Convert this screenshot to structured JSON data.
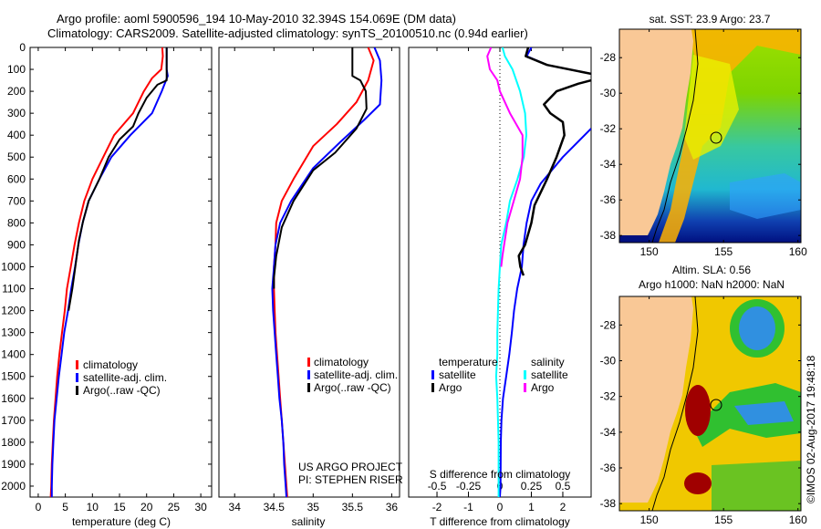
{
  "header": {
    "title_line1": "Argo profile: aoml 5900596_194 10-May-2010 32.394S 154.069E (DM data)",
    "title_line2": "Climatology: CARS2009. Satellite-adjusted climatology: synTS_20100510.nc (0.94d earlier)"
  },
  "colors": {
    "climatology": "#ff0000",
    "satellite": "#0000ff",
    "argo": "#000000",
    "salinity_satellite": "#00ffff",
    "salinity_argo": "#ff00ff",
    "land": "#f9c896"
  },
  "chart_data": [
    {
      "type": "line",
      "id": "temperature-profile",
      "xlabel": "temperature (deg C)",
      "ylabel": "",
      "xlim": [
        -1.5,
        32
      ],
      "ylim": [
        2050,
        0
      ],
      "xticks": [
        0,
        5,
        10,
        15,
        20,
        25,
        30
      ],
      "yticks": [
        0,
        100,
        200,
        300,
        400,
        500,
        600,
        700,
        800,
        900,
        1000,
        1100,
        1200,
        1300,
        1400,
        1500,
        1600,
        1700,
        1800,
        1900,
        2000
      ],
      "legend": {
        "position": "center-right",
        "entries": [
          "climatology",
          "satellite-adj. clim.",
          "Argo(..raw -QC)"
        ]
      },
      "series": [
        {
          "name": "climatology",
          "color_key": "climatology",
          "points": [
            [
              22.9,
              0
            ],
            [
              23.0,
              40
            ],
            [
              22.7,
              100
            ],
            [
              21.0,
              140
            ],
            [
              19.5,
              200
            ],
            [
              17.5,
              300
            ],
            [
              14.0,
              400
            ],
            [
              12.0,
              500
            ],
            [
              10.0,
              600
            ],
            [
              8.5,
              700
            ],
            [
              7.5,
              800
            ],
            [
              6.7,
              900
            ],
            [
              6.0,
              1000
            ],
            [
              5.3,
              1100
            ],
            [
              4.9,
              1200
            ],
            [
              4.4,
              1300
            ],
            [
              3.9,
              1400
            ],
            [
              3.5,
              1500
            ],
            [
              3.2,
              1600
            ],
            [
              2.9,
              1700
            ],
            [
              2.7,
              1800
            ],
            [
              2.5,
              1900
            ],
            [
              2.4,
              2000
            ],
            [
              2.3,
              2050
            ]
          ]
        },
        {
          "name": "satellite-adj. clim.",
          "color_key": "satellite",
          "points": [
            [
              23.7,
              0
            ],
            [
              23.7,
              100
            ],
            [
              23.9,
              130
            ],
            [
              22.8,
              200
            ],
            [
              21.0,
              300
            ],
            [
              17.0,
              400
            ],
            [
              13.5,
              500
            ],
            [
              11.3,
              600
            ],
            [
              9.3,
              700
            ],
            [
              8.2,
              800
            ],
            [
              7.4,
              900
            ],
            [
              6.8,
              1000
            ],
            [
              6.1,
              1100
            ],
            [
              5.5,
              1200
            ],
            [
              4.8,
              1300
            ],
            [
              4.3,
              1400
            ],
            [
              3.8,
              1500
            ],
            [
              3.4,
              1600
            ],
            [
              3.0,
              1700
            ],
            [
              2.8,
              1800
            ],
            [
              2.6,
              1900
            ],
            [
              2.5,
              2000
            ],
            [
              2.5,
              2050
            ]
          ]
        },
        {
          "name": "Argo(..raw -QC)",
          "color_key": "argo",
          "points": [
            [
              23.7,
              0
            ],
            [
              23.7,
              150
            ],
            [
              22.0,
              170
            ],
            [
              20.0,
              230
            ],
            [
              18.5,
              300
            ],
            [
              17.5,
              360
            ],
            [
              15.0,
              420
            ],
            [
              13.0,
              500
            ],
            [
              11.3,
              600
            ],
            [
              9.3,
              700
            ],
            [
              8.3,
              790
            ],
            [
              7.5,
              880
            ],
            [
              6.9,
              990
            ],
            [
              6.3,
              1100
            ],
            [
              5.6,
              1200
            ]
          ]
        }
      ]
    },
    {
      "type": "line",
      "id": "salinity-profile",
      "xlabel": "salinity",
      "xlim": [
        33.8,
        36.1
      ],
      "ylim": [
        2050,
        0
      ],
      "xticks": [
        34,
        34.5,
        35,
        35.5,
        36
      ],
      "xticklabels": [
        "34",
        "34.5",
        "35",
        "35.5",
        "36"
      ],
      "legend": {
        "position": "center-right",
        "entries": [
          "climatology",
          "satellite-adj. clim.",
          "Argo(..raw -QC)"
        ]
      },
      "annotations": [
        "US ARGO PROJECT",
        "PI: STEPHEN RISER"
      ],
      "series": [
        {
          "name": "climatology",
          "color_key": "climatology",
          "points": [
            [
              35.7,
              0
            ],
            [
              35.77,
              60
            ],
            [
              35.7,
              150
            ],
            [
              35.55,
              250
            ],
            [
              35.3,
              350
            ],
            [
              35.0,
              450
            ],
            [
              34.75,
              600
            ],
            [
              34.6,
              700
            ],
            [
              34.53,
              800
            ],
            [
              34.52,
              900
            ],
            [
              34.5,
              1000
            ],
            [
              34.5,
              1100
            ],
            [
              34.51,
              1200
            ],
            [
              34.52,
              1300
            ],
            [
              34.54,
              1400
            ],
            [
              34.56,
              1500
            ],
            [
              34.58,
              1600
            ],
            [
              34.6,
              1700
            ],
            [
              34.62,
              1800
            ],
            [
              34.64,
              1900
            ],
            [
              34.66,
              2000
            ],
            [
              34.67,
              2050
            ]
          ]
        },
        {
          "name": "satellite-adj. clim.",
          "color_key": "satellite",
          "points": [
            [
              35.78,
              0
            ],
            [
              35.85,
              60
            ],
            [
              35.87,
              150
            ],
            [
              35.85,
              260
            ],
            [
              35.65,
              330
            ],
            [
              35.35,
              430
            ],
            [
              35.0,
              550
            ],
            [
              34.72,
              700
            ],
            [
              34.58,
              800
            ],
            [
              34.52,
              900
            ],
            [
              34.5,
              1000
            ],
            [
              34.48,
              1100
            ],
            [
              34.49,
              1200
            ],
            [
              34.51,
              1300
            ],
            [
              34.53,
              1400
            ],
            [
              34.55,
              1500
            ],
            [
              34.57,
              1600
            ],
            [
              34.6,
              1700
            ],
            [
              34.62,
              1800
            ],
            [
              34.63,
              1900
            ],
            [
              34.65,
              2000
            ],
            [
              34.66,
              2050
            ]
          ]
        },
        {
          "name": "Argo(..raw -QC)",
          "color_key": "argo",
          "points": [
            [
              35.5,
              0
            ],
            [
              35.5,
              130
            ],
            [
              35.6,
              150
            ],
            [
              35.67,
              200
            ],
            [
              35.68,
              280
            ],
            [
              35.55,
              370
            ],
            [
              35.28,
              480
            ],
            [
              35.0,
              560
            ],
            [
              34.75,
              700
            ],
            [
              34.6,
              820
            ],
            [
              34.53,
              950
            ],
            [
              34.5,
              1050
            ],
            [
              34.5,
              1100
            ]
          ]
        }
      ]
    },
    {
      "type": "line",
      "id": "difference-profile",
      "xlabel": "T difference from climatology",
      "xlabel2": "S difference from climatology",
      "xlim": [
        -2.9,
        2.9
      ],
      "x2lim": [
        -0.725,
        0.725
      ],
      "ylim": [
        2050,
        0
      ],
      "xticks": [
        -2,
        -1,
        0,
        1,
        2
      ],
      "x2ticks": [
        -0.5,
        -0.25,
        0,
        0.25,
        0.5
      ],
      "x2ticklabels": [
        "-0.5",
        "-0.25",
        "0",
        "0.25",
        "0.5"
      ],
      "legend": {
        "position": "center",
        "groups": [
          {
            "title": "temperature",
            "entries": [
              "satellite",
              "Argo"
            ]
          },
          {
            "title": "salinity",
            "entries": [
              "satellite",
              "Argo"
            ]
          }
        ]
      },
      "series": [
        {
          "name": "T satellite",
          "axis": "T",
          "color_key": "satellite",
          "points": [
            [
              1.0,
              0
            ],
            [
              0.85,
              40
            ],
            [
              1.5,
              80
            ],
            [
              2.9,
              120
            ]
          ]
        },
        {
          "name": "T satellite deep",
          "axis": "T",
          "color_key": "satellite",
          "points": [
            [
              2.9,
              370
            ],
            [
              2.0,
              500
            ],
            [
              1.3,
              620
            ],
            [
              1.0,
              700
            ],
            [
              0.85,
              800
            ],
            [
              0.75,
              900
            ],
            [
              0.7,
              1000
            ],
            [
              0.55,
              1100
            ],
            [
              0.45,
              1200
            ],
            [
              0.38,
              1300
            ],
            [
              0.3,
              1400
            ],
            [
              0.2,
              1500
            ],
            [
              0.1,
              1600
            ],
            [
              0.05,
              1700
            ],
            [
              0.03,
              1800
            ],
            [
              0.02,
              2000
            ],
            [
              0.0,
              2050
            ]
          ]
        },
        {
          "name": "T Argo",
          "axis": "T",
          "color_key": "argo",
          "points": [
            [
              0.9,
              0
            ],
            [
              0.82,
              40
            ],
            [
              1.5,
              80
            ],
            [
              2.9,
              120
            ]
          ]
        },
        {
          "name": "T Argo deep",
          "axis": "T",
          "color_key": "argo",
          "points": [
            [
              2.9,
              150
            ],
            [
              2.5,
              165
            ],
            [
              1.8,
              200
            ],
            [
              1.4,
              260
            ],
            [
              1.6,
              300
            ],
            [
              2.0,
              340
            ],
            [
              2.05,
              400
            ],
            [
              1.8,
              500
            ],
            [
              1.5,
              600
            ],
            [
              1.1,
              720
            ],
            [
              1.0,
              800
            ],
            [
              0.8,
              900
            ],
            [
              0.6,
              950
            ],
            [
              0.65,
              1000
            ],
            [
              0.75,
              1040
            ]
          ]
        },
        {
          "name": "S satellite",
          "axis": "S",
          "color_key": "salinity_satellite",
          "points": [
            [
              0.02,
              0
            ],
            [
              0.04,
              40
            ],
            [
              0.1,
              100
            ],
            [
              0.16,
              200
            ],
            [
              0.2,
              300
            ],
            [
              0.21,
              400
            ],
            [
              0.19,
              500
            ],
            [
              0.14,
              600
            ],
            [
              0.08,
              700
            ],
            [
              0.05,
              800
            ],
            [
              0.01,
              900
            ],
            [
              0.0,
              1000
            ],
            [
              -0.01,
              1100
            ],
            [
              -0.02,
              1300
            ],
            [
              -0.02,
              1400
            ],
            [
              -0.03,
              1500
            ],
            [
              -0.02,
              1600
            ],
            [
              -0.01,
              1800
            ],
            [
              -0.01,
              2050
            ]
          ]
        },
        {
          "name": "S Argo",
          "axis": "S",
          "color_key": "salinity_argo",
          "points": [
            [
              -0.07,
              0
            ],
            [
              -0.1,
              40
            ],
            [
              -0.08,
              100
            ],
            [
              -0.02,
              150
            ],
            [
              0.0,
              200
            ],
            [
              0.08,
              300
            ],
            [
              0.18,
              400
            ],
            [
              0.18,
              500
            ],
            [
              0.16,
              600
            ],
            [
              0.11,
              700
            ],
            [
              0.06,
              800
            ],
            [
              0.02,
              950
            ],
            [
              0.01,
              1000
            ]
          ]
        }
      ]
    },
    {
      "type": "heatmap",
      "id": "sst-map",
      "title": "sat. SST: 23.9 Argo: 23.7",
      "xlim": [
        148,
        160.2
      ],
      "ylim": [
        -38.4,
        -26.4
      ],
      "xticks": [
        150,
        155,
        160
      ],
      "yticks": [
        -28,
        -30,
        -32,
        -34,
        -36,
        -38
      ],
      "marker": {
        "lon": 154.069,
        "lat": -32.394
      }
    },
    {
      "type": "heatmap",
      "id": "sla-map",
      "title": "Altim. SLA: 0.56",
      "subtitle": "Argo h1000: NaN h2000: NaN",
      "xlim": [
        148,
        160.2
      ],
      "ylim": [
        -38.4,
        -26.4
      ],
      "xticks": [
        150,
        155,
        160
      ],
      "yticks": [
        -28,
        -30,
        -32,
        -34,
        -36,
        -38
      ],
      "marker": {
        "lon": 154.069,
        "lat": -32.394
      },
      "annotation": "©IMOS 02-Aug-2017 19:48:18"
    }
  ],
  "panels": {
    "temp_legend": [
      "climatology",
      "satellite-adj. clim.",
      "Argo(..raw -QC)"
    ],
    "sal_legend": [
      "climatology",
      "satellite-adj. clim.",
      "Argo(..raw -QC)"
    ],
    "sal_note": [
      "US ARGO PROJECT",
      "PI: STEPHEN RISER"
    ],
    "diff_legend": {
      "t_title": "temperature",
      "s_title": "salinity",
      "t_items": [
        "satellite",
        "Argo"
      ],
      "s_items": [
        "satellite",
        "Argo"
      ]
    },
    "sst_title": "sat. SST: 23.9 Argo: 23.7",
    "sla_title1": "Altim. SLA: 0.56",
    "sla_title2": "Argo h1000: NaN h2000: NaN",
    "credit": "©IMOS 02-Aug-2017 19:48:18"
  }
}
